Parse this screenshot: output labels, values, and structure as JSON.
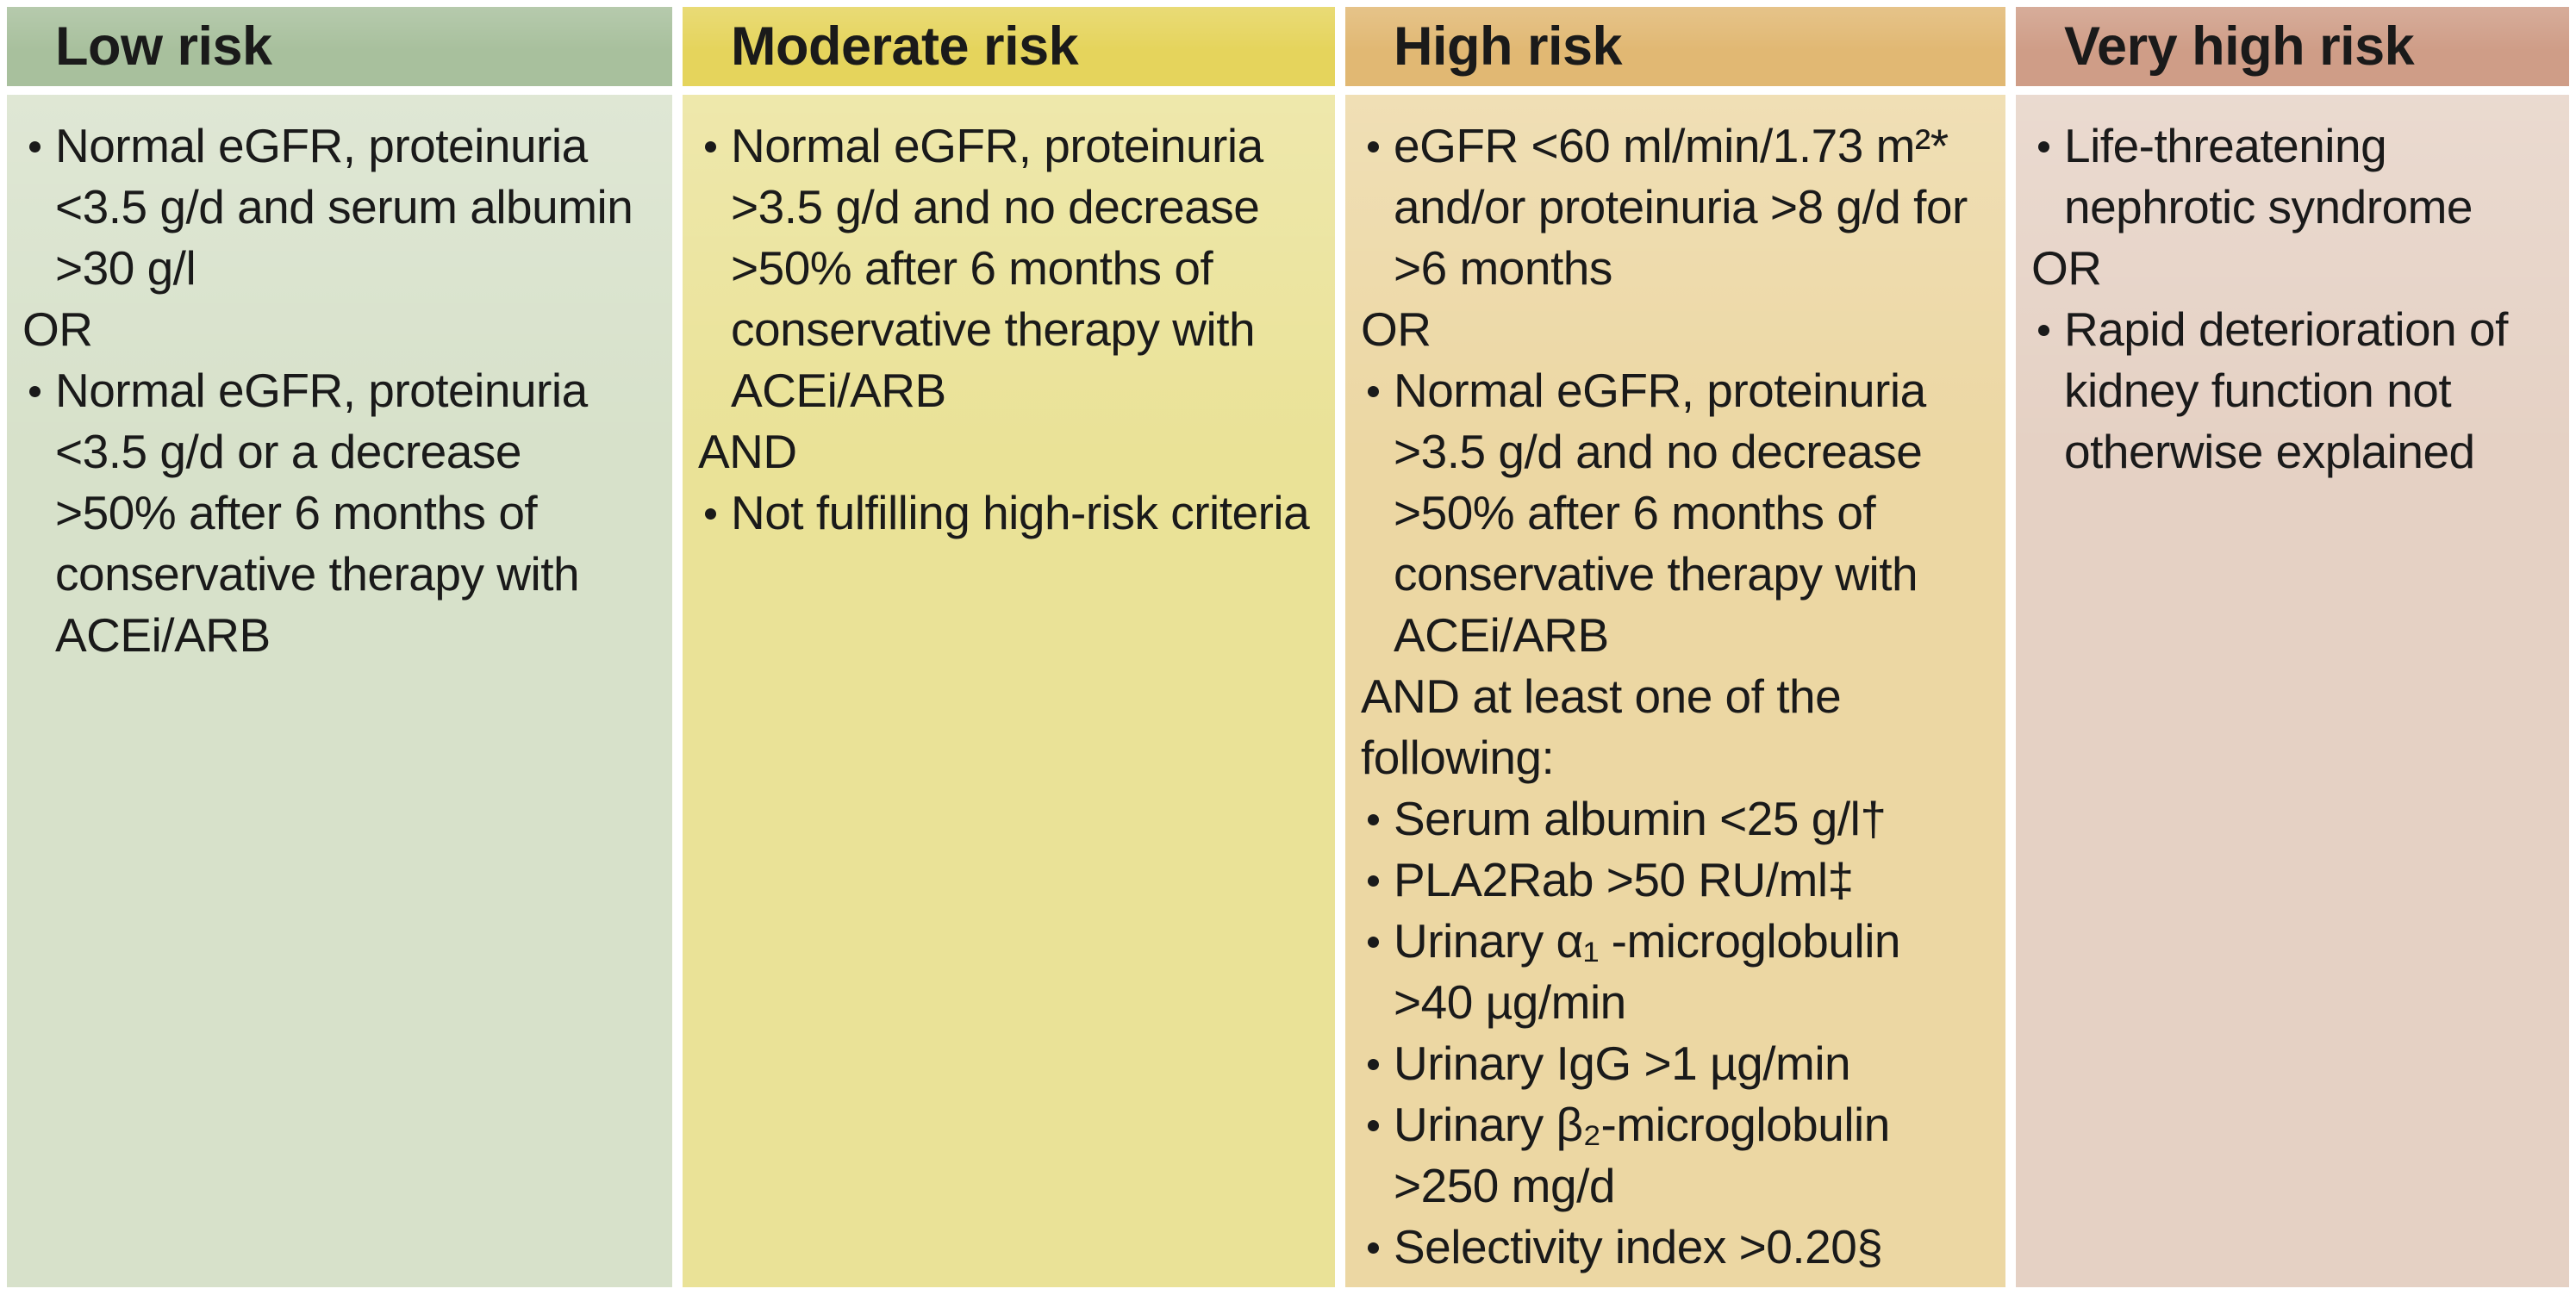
{
  "table": {
    "columns": [
      {
        "id": "low-risk",
        "label": "Low risk",
        "colors": {
          "header": "#a8c09d",
          "body": "#d7e1ca"
        },
        "items": [
          {
            "type": "bullet",
            "text": "Normal eGFR, proteinuria <3.5 g/d and serum albumin >30 g/l"
          },
          {
            "type": "connector",
            "text": "OR"
          },
          {
            "type": "bullet",
            "text": "Normal eGFR, proteinuria <3.5 g/d or a decrease >50% after 6 months of conservative therapy with ACEi/ARB"
          }
        ]
      },
      {
        "id": "moderate-risk",
        "label": "Moderate risk",
        "colors": {
          "header": "#e5d45c",
          "body": "#eae297"
        },
        "items": [
          {
            "type": "bullet",
            "text": "Normal eGFR, proteinuria >3.5 g/d and no decrease >50% after 6 months of conservative therapy with ACEi/ARB"
          },
          {
            "type": "connector",
            "text": "AND"
          },
          {
            "type": "bullet",
            "text": "Not fulfilling high-risk criteria"
          }
        ]
      },
      {
        "id": "high-risk",
        "label": "High risk",
        "colors": {
          "header": "#e1b873",
          "body": "#ecd7a3"
        },
        "items": [
          {
            "type": "bullet",
            "text": "eGFR <60 ml/min/1.73 m²* and/or proteinuria >8 g/d for >6 months"
          },
          {
            "type": "connector",
            "text": "OR"
          },
          {
            "type": "bullet",
            "text": "Normal eGFR, proteinuria >3.5 g/d and no decrease >50% after 6 months of conservative therapy with ACEi/ARB"
          },
          {
            "type": "connector",
            "text": "AND at least one of the following:"
          },
          {
            "type": "bullet",
            "text": "Serum albumin <25 g/l†"
          },
          {
            "type": "bullet",
            "text": "PLA2Rab >50 RU/ml‡"
          },
          {
            "type": "bullet",
            "text": "Urinary α₁ -microglobulin >40 µg/min"
          },
          {
            "type": "bullet",
            "text": "Urinary IgG >1 µg/min"
          },
          {
            "type": "bullet",
            "text": "Urinary β₂-microglobulin >250 mg/d"
          },
          {
            "type": "bullet",
            "text": "Selectivity index >0.20§"
          }
        ]
      },
      {
        "id": "very-high-risk",
        "label": "Very high risk",
        "colors": {
          "header": "#cf9d87",
          "body": "#e5d1c4"
        },
        "items": [
          {
            "type": "bullet",
            "text": "Life-threatening nephrotic syndrome"
          },
          {
            "type": "connector",
            "text": "OR"
          },
          {
            "type": "bullet",
            "text": "Rapid deterioration of kidney function not otherwise explained"
          }
        ]
      }
    ]
  }
}
